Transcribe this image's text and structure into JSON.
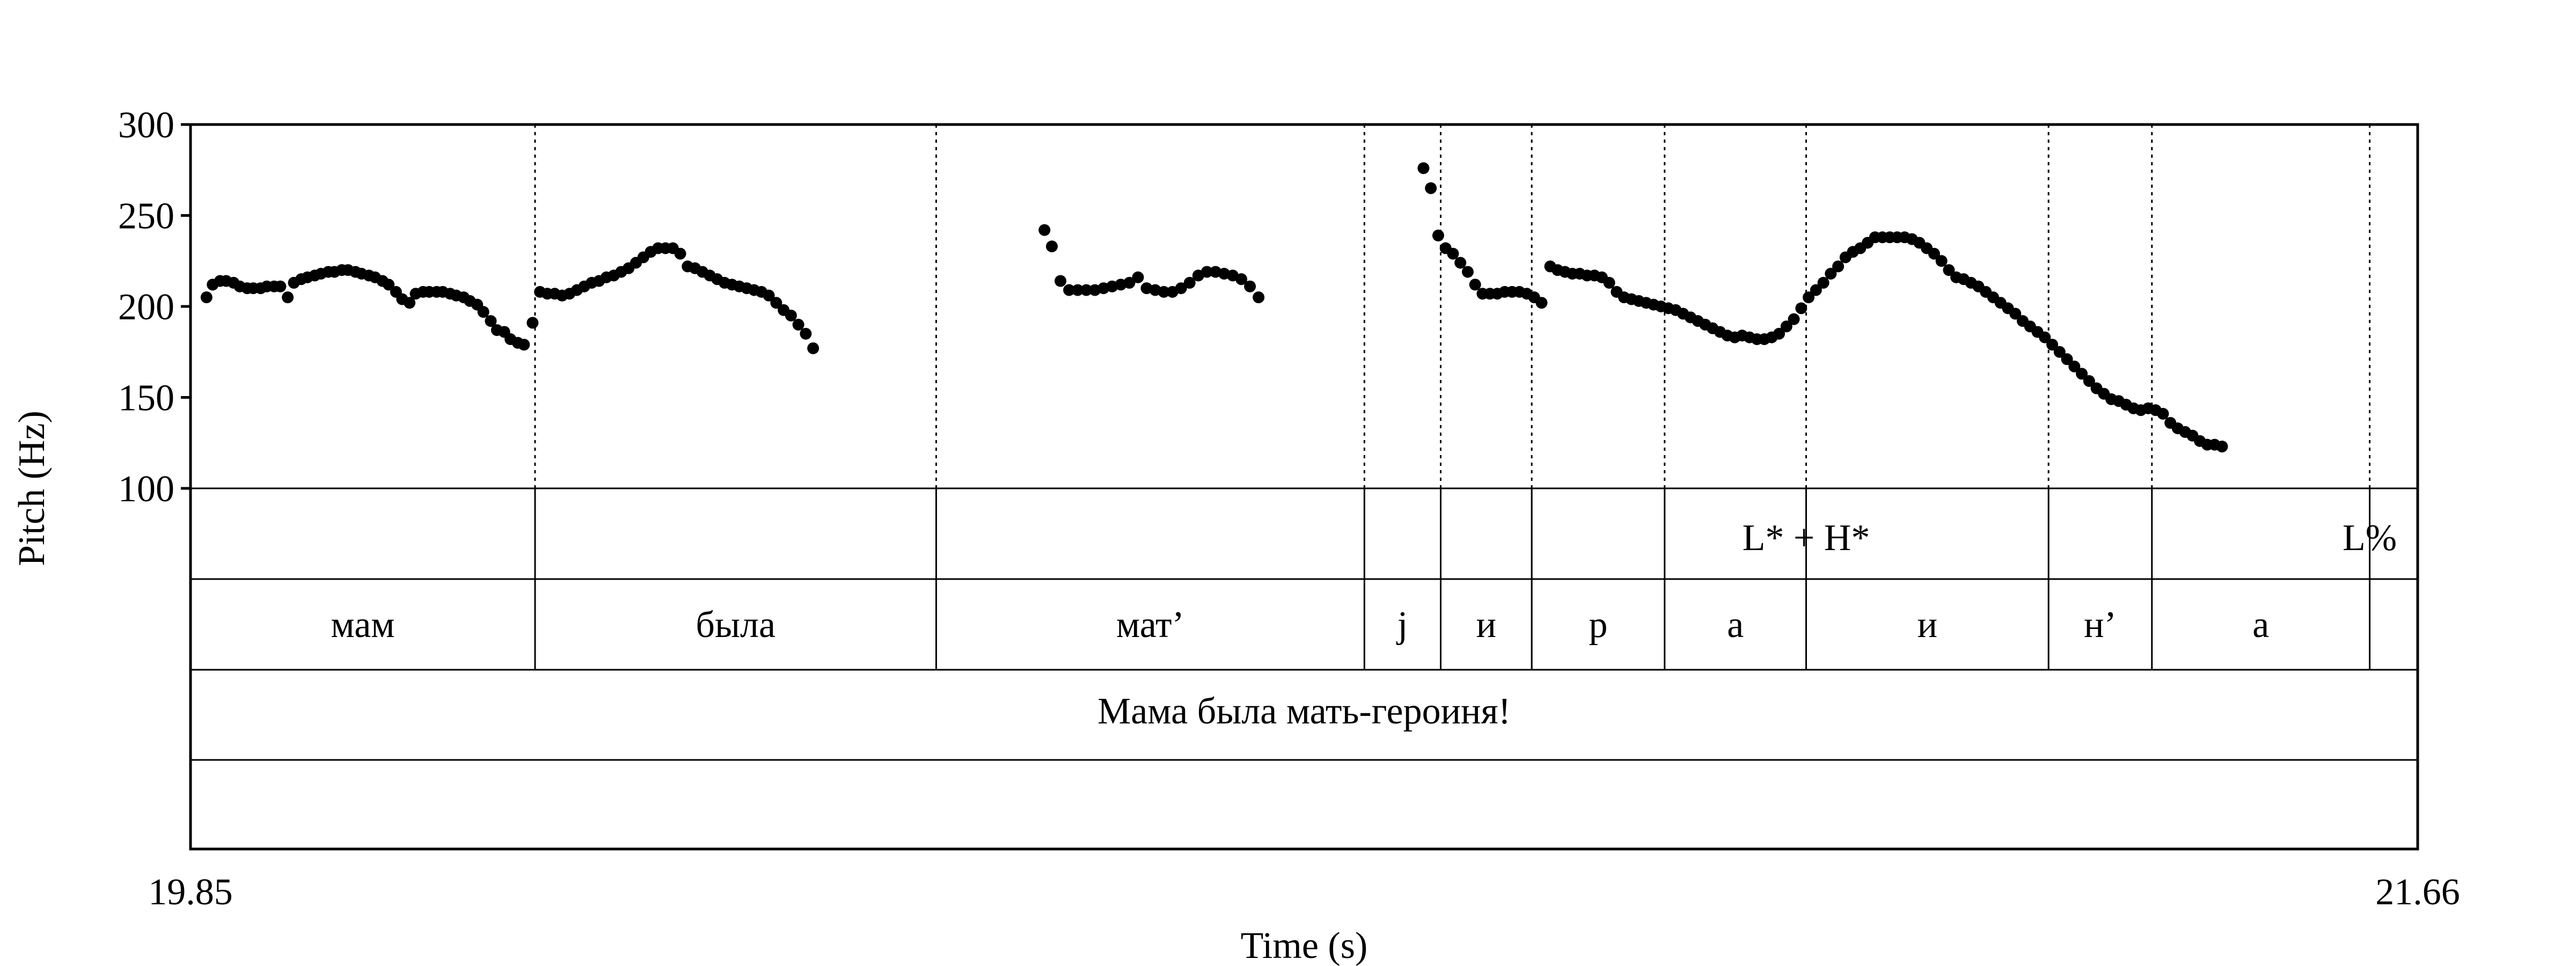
{
  "chart_data": {
    "type": "scatter",
    "ylabel": "Pitch (Hz)",
    "xlabel": "Time (s)",
    "xlim": [
      19.85,
      21.66
    ],
    "ylim": [
      100,
      300
    ],
    "x_ticks": [
      "19.85",
      "21.66"
    ],
    "y_ticks": [
      100,
      150,
      200,
      250,
      300
    ],
    "boundaries": [
      20.13,
      20.456,
      20.804,
      20.866,
      20.94,
      21.048,
      21.163,
      21.36,
      21.444,
      21.621
    ],
    "tone_tier": [
      {
        "x": 21.163,
        "label": "L* + H*"
      },
      {
        "x": 21.621,
        "label": "L%"
      }
    ],
    "segment_tier": [
      {
        "start": 19.85,
        "end": 20.13,
        "label": "мам"
      },
      {
        "start": 20.13,
        "end": 20.456,
        "label": "была"
      },
      {
        "start": 20.456,
        "end": 20.804,
        "label": "мат’"
      },
      {
        "start": 20.804,
        "end": 20.866,
        "label": "j"
      },
      {
        "start": 20.866,
        "end": 20.94,
        "label": "и"
      },
      {
        "start": 20.94,
        "end": 21.048,
        "label": "р"
      },
      {
        "start": 21.048,
        "end": 21.163,
        "label": "а"
      },
      {
        "start": 21.163,
        "end": 21.36,
        "label": "и"
      },
      {
        "start": 21.36,
        "end": 21.444,
        "label": "н’"
      },
      {
        "start": 21.444,
        "end": 21.621,
        "label": "а"
      }
    ],
    "sentence_tier": [
      {
        "start": 19.85,
        "end": 21.66,
        "label": "Мама была мать-героиня!"
      }
    ],
    "series": [
      {
        "points": [
          [
            19.863,
            205
          ],
          [
            19.868,
            212
          ],
          [
            19.874,
            214
          ],
          [
            19.879,
            214
          ],
          [
            19.885,
            213
          ],
          [
            19.89,
            211
          ],
          [
            19.896,
            210
          ],
          [
            19.901,
            210
          ],
          [
            19.907,
            210
          ],
          [
            19.912,
            211
          ],
          [
            19.918,
            211
          ],
          [
            19.923,
            211
          ],
          [
            19.929,
            205
          ],
          [
            19.934,
            213
          ],
          [
            19.94,
            215
          ],
          [
            19.945,
            216
          ],
          [
            19.951,
            217
          ],
          [
            19.956,
            218
          ],
          [
            19.962,
            219
          ],
          [
            19.967,
            219
          ],
          [
            19.973,
            220
          ],
          [
            19.978,
            220
          ],
          [
            19.984,
            219
          ],
          [
            19.989,
            218
          ],
          [
            19.995,
            217
          ],
          [
            20.0,
            216
          ],
          [
            20.006,
            214
          ],
          [
            20.011,
            212
          ],
          [
            20.017,
            208
          ],
          [
            20.022,
            204
          ],
          [
            20.028,
            202
          ],
          [
            20.033,
            207
          ],
          [
            20.039,
            208
          ],
          [
            20.044,
            208
          ],
          [
            20.05,
            208
          ],
          [
            20.055,
            208
          ],
          [
            20.061,
            207
          ],
          [
            20.066,
            206
          ],
          [
            20.072,
            205
          ],
          [
            20.077,
            203
          ],
          [
            20.083,
            201
          ],
          [
            20.088,
            197
          ],
          [
            20.094,
            192
          ],
          [
            20.099,
            187
          ],
          [
            20.105,
            186
          ],
          [
            20.11,
            182
          ],
          [
            20.116,
            180
          ],
          [
            20.121,
            179
          ],
          [
            20.128,
            191
          ],
          [
            20.134,
            208
          ],
          [
            20.14,
            207
          ],
          [
            20.146,
            207
          ],
          [
            20.152,
            206
          ],
          [
            20.158,
            207
          ],
          [
            20.164,
            209
          ],
          [
            20.17,
            211
          ],
          [
            20.176,
            213
          ],
          [
            20.182,
            214
          ],
          [
            20.188,
            216
          ],
          [
            20.194,
            217
          ],
          [
            20.2,
            219
          ],
          [
            20.206,
            221
          ],
          [
            20.212,
            224
          ],
          [
            20.218,
            227
          ],
          [
            20.224,
            230
          ],
          [
            20.23,
            232
          ],
          [
            20.236,
            232
          ],
          [
            20.242,
            232
          ],
          [
            20.248,
            229
          ],
          [
            20.254,
            222
          ],
          [
            20.26,
            221
          ],
          [
            20.266,
            219
          ],
          [
            20.272,
            217
          ],
          [
            20.278,
            215
          ],
          [
            20.284,
            213
          ],
          [
            20.29,
            212
          ],
          [
            20.296,
            211
          ],
          [
            20.302,
            210
          ],
          [
            20.308,
            209
          ],
          [
            20.314,
            208
          ],
          [
            20.32,
            206
          ],
          [
            20.326,
            202
          ],
          [
            20.332,
            198
          ],
          [
            20.338,
            195
          ],
          [
            20.344,
            190
          ],
          [
            20.35,
            185
          ],
          [
            20.356,
            177
          ],
          [
            20.544,
            242
          ],
          [
            20.55,
            233
          ],
          [
            20.557,
            214
          ],
          [
            20.564,
            209
          ],
          [
            20.571,
            209
          ],
          [
            20.578,
            209
          ],
          [
            20.585,
            209
          ],
          [
            20.592,
            210
          ],
          [
            20.599,
            211
          ],
          [
            20.606,
            212
          ],
          [
            20.613,
            213
          ],
          [
            20.62,
            216
          ],
          [
            20.627,
            210
          ],
          [
            20.634,
            209
          ],
          [
            20.641,
            208
          ],
          [
            20.648,
            208
          ],
          [
            20.655,
            210
          ],
          [
            20.662,
            213
          ],
          [
            20.669,
            217
          ],
          [
            20.676,
            219
          ],
          [
            20.683,
            219
          ],
          [
            20.69,
            218
          ],
          [
            20.697,
            217
          ],
          [
            20.704,
            215
          ],
          [
            20.711,
            211
          ],
          [
            20.718,
            205
          ],
          [
            20.852,
            276
          ],
          [
            20.858,
            265
          ],
          [
            20.864,
            239
          ],
          [
            20.87,
            232
          ],
          [
            20.876,
            229
          ],
          [
            20.882,
            224
          ],
          [
            20.888,
            219
          ],
          [
            20.894,
            212
          ],
          [
            20.9,
            207
          ],
          [
            20.906,
            207
          ],
          [
            20.912,
            207
          ],
          [
            20.918,
            208
          ],
          [
            20.924,
            208
          ],
          [
            20.93,
            208
          ],
          [
            20.936,
            207
          ],
          [
            20.942,
            205
          ],
          [
            20.948,
            202
          ],
          [
            20.955,
            222
          ],
          [
            20.961,
            220
          ],
          [
            20.967,
            219
          ],
          [
            20.973,
            218
          ],
          [
            20.979,
            218
          ],
          [
            20.985,
            217
          ],
          [
            20.991,
            217
          ],
          [
            20.997,
            216
          ],
          [
            21.003,
            213
          ],
          [
            21.009,
            208
          ],
          [
            21.015,
            205
          ],
          [
            21.021,
            204
          ],
          [
            21.027,
            203
          ],
          [
            21.033,
            202
          ],
          [
            21.039,
            201
          ],
          [
            21.045,
            200
          ],
          [
            21.051,
            199
          ],
          [
            21.057,
            198
          ],
          [
            21.063,
            196
          ],
          [
            21.069,
            194
          ],
          [
            21.075,
            192
          ],
          [
            21.081,
            190
          ],
          [
            21.087,
            188
          ],
          [
            21.093,
            186
          ],
          [
            21.099,
            184
          ],
          [
            21.105,
            183
          ],
          [
            21.111,
            184
          ],
          [
            21.117,
            183
          ],
          [
            21.123,
            182
          ],
          [
            21.129,
            182
          ],
          [
            21.135,
            183
          ],
          [
            21.141,
            185
          ],
          [
            21.147,
            189
          ],
          [
            21.153,
            193
          ],
          [
            21.159,
            199
          ],
          [
            21.165,
            205
          ],
          [
            21.171,
            209
          ],
          [
            21.177,
            213
          ],
          [
            21.183,
            218
          ],
          [
            21.189,
            222
          ],
          [
            21.195,
            227
          ],
          [
            21.201,
            230
          ],
          [
            21.207,
            232
          ],
          [
            21.213,
            235
          ],
          [
            21.219,
            238
          ],
          [
            21.225,
            238
          ],
          [
            21.231,
            238
          ],
          [
            21.237,
            238
          ],
          [
            21.243,
            238
          ],
          [
            21.249,
            237
          ],
          [
            21.255,
            235
          ],
          [
            21.261,
            232
          ],
          [
            21.267,
            229
          ],
          [
            21.273,
            225
          ],
          [
            21.279,
            220
          ],
          [
            21.285,
            216
          ],
          [
            21.291,
            215
          ],
          [
            21.297,
            213
          ],
          [
            21.303,
            211
          ],
          [
            21.309,
            208
          ],
          [
            21.315,
            205
          ],
          [
            21.321,
            202
          ],
          [
            21.327,
            199
          ],
          [
            21.333,
            196
          ],
          [
            21.339,
            192
          ],
          [
            21.345,
            189
          ],
          [
            21.351,
            186
          ],
          [
            21.357,
            183
          ],
          [
            21.363,
            179
          ],
          [
            21.369,
            175
          ],
          [
            21.375,
            171
          ],
          [
            21.381,
            167
          ],
          [
            21.387,
            163
          ],
          [
            21.393,
            159
          ],
          [
            21.399,
            155
          ],
          [
            21.405,
            152
          ],
          [
            21.411,
            149
          ],
          [
            21.417,
            148
          ],
          [
            21.423,
            146
          ],
          [
            21.429,
            144
          ],
          [
            21.435,
            143
          ],
          [
            21.441,
            144
          ],
          [
            21.447,
            143
          ],
          [
            21.453,
            141
          ],
          [
            21.459,
            136
          ],
          [
            21.465,
            133
          ],
          [
            21.471,
            131
          ],
          [
            21.477,
            129
          ],
          [
            21.483,
            126
          ],
          [
            21.489,
            124
          ],
          [
            21.495,
            124
          ],
          [
            21.501,
            123
          ]
        ]
      }
    ]
  }
}
